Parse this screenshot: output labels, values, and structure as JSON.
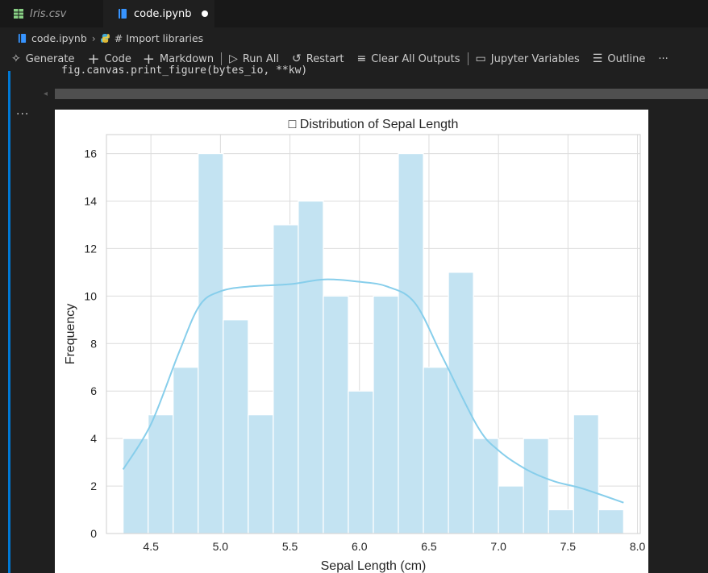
{
  "tabs": [
    {
      "label": "Iris.csv",
      "icon": "table-icon"
    },
    {
      "label": "code.ipynb",
      "icon": "notebook-icon",
      "dirty": true
    }
  ],
  "breadcrumb": {
    "file": "code.ipynb",
    "section": "# Import libraries"
  },
  "toolbar": {
    "generate": "Generate",
    "code": "Code",
    "markdown": "Markdown",
    "run_all": "Run All",
    "restart": "Restart",
    "clear_outputs": "Clear All Outputs",
    "variables": "Jupyter Variables",
    "outline": "Outline",
    "more": "···"
  },
  "code_line": "fig.canvas.print_figure(bytes_io, **kw)",
  "cell_more": "···",
  "colors": {
    "bar_fill": "#c3e3f2",
    "kde_line": "#87ceeb",
    "accent": "#0078d4"
  },
  "chart_data": {
    "type": "bar",
    "title": "□ Distribution of Sepal Length",
    "xlabel": "Sepal Length (cm)",
    "ylabel": "Frequency",
    "xlim": [
      4.18,
      8.02
    ],
    "ylim": [
      0,
      16.8
    ],
    "xticks": [
      "4.5",
      "5.0",
      "5.5",
      "6.0",
      "6.5",
      "7.0",
      "7.5",
      "8.0"
    ],
    "yticks": [
      "0",
      "2",
      "4",
      "6",
      "8",
      "10",
      "12",
      "14",
      "16"
    ],
    "grid": true,
    "bin_edges": [
      4.3,
      4.48,
      4.66,
      4.84,
      5.02,
      5.2,
      5.38,
      5.56,
      5.74,
      5.92,
      6.1,
      6.28,
      6.46,
      6.64,
      6.82,
      7.0,
      7.18,
      7.36,
      7.54,
      7.72,
      7.9
    ],
    "counts": [
      4,
      5,
      7,
      16,
      9,
      5,
      13,
      14,
      10,
      6,
      10,
      16,
      7,
      11,
      4,
      2,
      4,
      1,
      5,
      1
    ],
    "kde": {
      "x": [
        4.3,
        4.5,
        4.7,
        4.85,
        5.0,
        5.2,
        5.5,
        5.75,
        6.0,
        6.2,
        6.4,
        6.6,
        6.85,
        7.0,
        7.2,
        7.4,
        7.6,
        7.9
      ],
      "y": [
        2.7,
        4.6,
        7.6,
        9.6,
        10.2,
        10.4,
        10.5,
        10.7,
        10.6,
        10.4,
        9.7,
        7.4,
        4.5,
        3.5,
        2.7,
        2.2,
        1.9,
        1.3
      ]
    }
  }
}
